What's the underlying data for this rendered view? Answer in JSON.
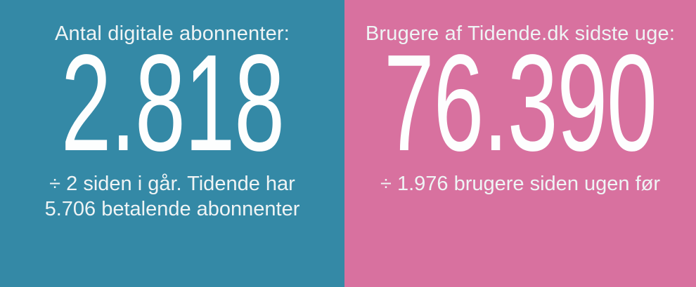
{
  "chart_data": {
    "type": "table",
    "title": "",
    "columns": [
      "metric",
      "value",
      "change",
      "note"
    ],
    "rows": [
      [
        "Antal digitale abonnenter",
        2818,
        -2,
        "Tidende har 5.706 betalende abonnenter"
      ],
      [
        "Brugere af Tidende.dk sidste uge",
        76390,
        -1976,
        ""
      ]
    ]
  },
  "panels": {
    "subscribers": {
      "title": "Antal digitale abonnenter:",
      "value": "2.818",
      "note_line1": "÷ 2 siden i går. Tidende har",
      "note_line2": "5.706 betalende abonnenter",
      "bg_color": "#3489A6"
    },
    "users": {
      "title": "Brugere af Tidende.dk sidste uge:",
      "value": "76.390",
      "note": "÷ 1.976 brugere siden ugen før",
      "bg_color": "#D8719F"
    }
  },
  "colors": {
    "teal_panel": "#3489A6",
    "pink_panel": "#D8719F",
    "text": "#FFFFFF"
  }
}
